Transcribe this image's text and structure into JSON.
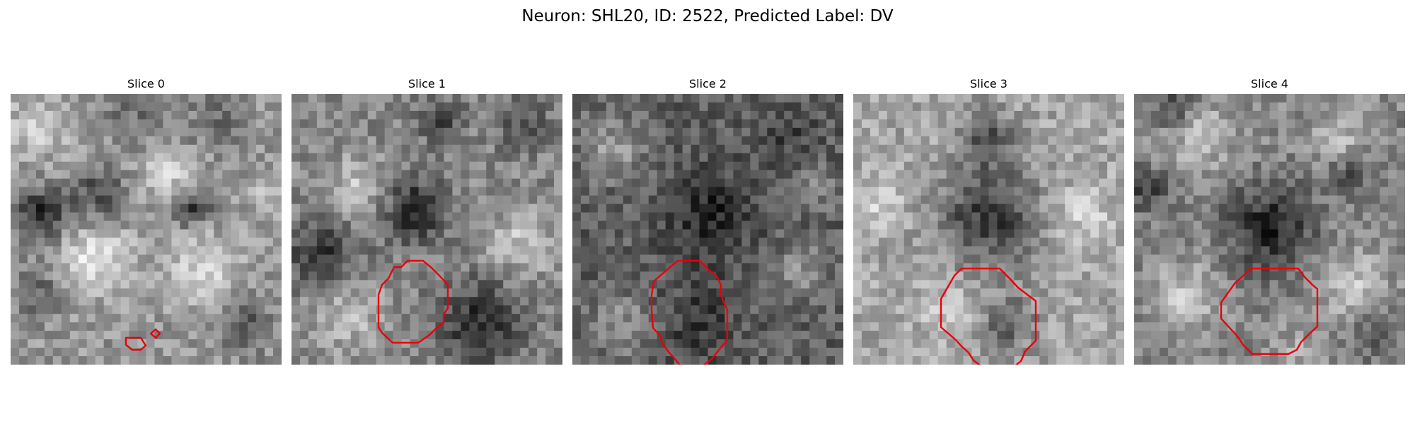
{
  "figure": {
    "title": "Neuron: SHL20, ID: 2522, Predicted Label: DV"
  },
  "outline_color": "#e8000b",
  "panels": [
    {
      "title": "Slice 0",
      "seed": 11,
      "base": 150,
      "dark_blobs": [
        [
          0.12,
          0.45,
          0.1,
          110
        ],
        [
          0.33,
          0.38,
          0.1,
          80
        ],
        [
          0.67,
          0.42,
          0.07,
          100
        ],
        [
          0.86,
          0.85,
          0.1,
          60
        ],
        [
          0.1,
          0.72,
          0.1,
          50
        ],
        [
          0.45,
          0.05,
          0.12,
          40
        ],
        [
          0.75,
          0.1,
          0.1,
          40
        ]
      ],
      "light_blobs": [
        [
          0.3,
          0.6,
          0.14,
          70
        ],
        [
          0.7,
          0.65,
          0.14,
          60
        ],
        [
          0.58,
          0.3,
          0.1,
          60
        ],
        [
          0.1,
          0.12,
          0.12,
          50
        ],
        [
          0.94,
          0.38,
          0.06,
          50
        ]
      ]
    },
    {
      "title": "Slice 1",
      "seed": 22,
      "base": 135,
      "dark_blobs": [
        [
          0.45,
          0.43,
          0.12,
          100
        ],
        [
          0.12,
          0.6,
          0.14,
          80
        ],
        [
          0.7,
          0.85,
          0.16,
          90
        ],
        [
          0.85,
          0.1,
          0.1,
          60
        ],
        [
          0.55,
          0.1,
          0.08,
          60
        ]
      ],
      "light_blobs": [
        [
          0.25,
          0.35,
          0.12,
          60
        ],
        [
          0.2,
          0.8,
          0.14,
          60
        ],
        [
          0.85,
          0.55,
          0.12,
          60
        ]
      ]
    },
    {
      "title": "Slice 2",
      "seed": 33,
      "base": 95,
      "dark_blobs": [
        [
          0.5,
          0.45,
          0.17,
          60
        ],
        [
          0.45,
          0.85,
          0.14,
          40
        ],
        [
          0.8,
          0.15,
          0.1,
          30
        ]
      ],
      "light_blobs": [
        [
          0.15,
          0.2,
          0.12,
          60
        ],
        [
          0.2,
          0.85,
          0.12,
          50
        ],
        [
          0.85,
          0.65,
          0.1,
          50
        ],
        [
          0.9,
          0.35,
          0.08,
          40
        ]
      ]
    },
    {
      "title": "Slice 3",
      "seed": 44,
      "base": 165,
      "dark_blobs": [
        [
          0.5,
          0.45,
          0.18,
          110
        ],
        [
          0.5,
          0.16,
          0.1,
          80
        ],
        [
          0.57,
          0.85,
          0.1,
          70
        ]
      ],
      "light_blobs": [
        [
          0.1,
          0.4,
          0.1,
          40
        ],
        [
          0.85,
          0.45,
          0.12,
          40
        ],
        [
          0.35,
          0.8,
          0.1,
          40
        ]
      ]
    },
    {
      "title": "Slice 4",
      "seed": 55,
      "base": 135,
      "dark_blobs": [
        [
          0.5,
          0.5,
          0.16,
          100
        ],
        [
          0.05,
          0.35,
          0.08,
          70
        ],
        [
          0.15,
          0.05,
          0.08,
          60
        ],
        [
          0.8,
          0.3,
          0.08,
          50
        ],
        [
          0.9,
          0.9,
          0.08,
          50
        ]
      ],
      "light_blobs": [
        [
          0.25,
          0.15,
          0.12,
          60
        ],
        [
          0.75,
          0.15,
          0.1,
          50
        ],
        [
          0.2,
          0.75,
          0.12,
          60
        ],
        [
          0.8,
          0.7,
          0.12,
          60
        ],
        [
          0.6,
          0.95,
          0.08,
          40
        ]
      ]
    }
  ]
}
